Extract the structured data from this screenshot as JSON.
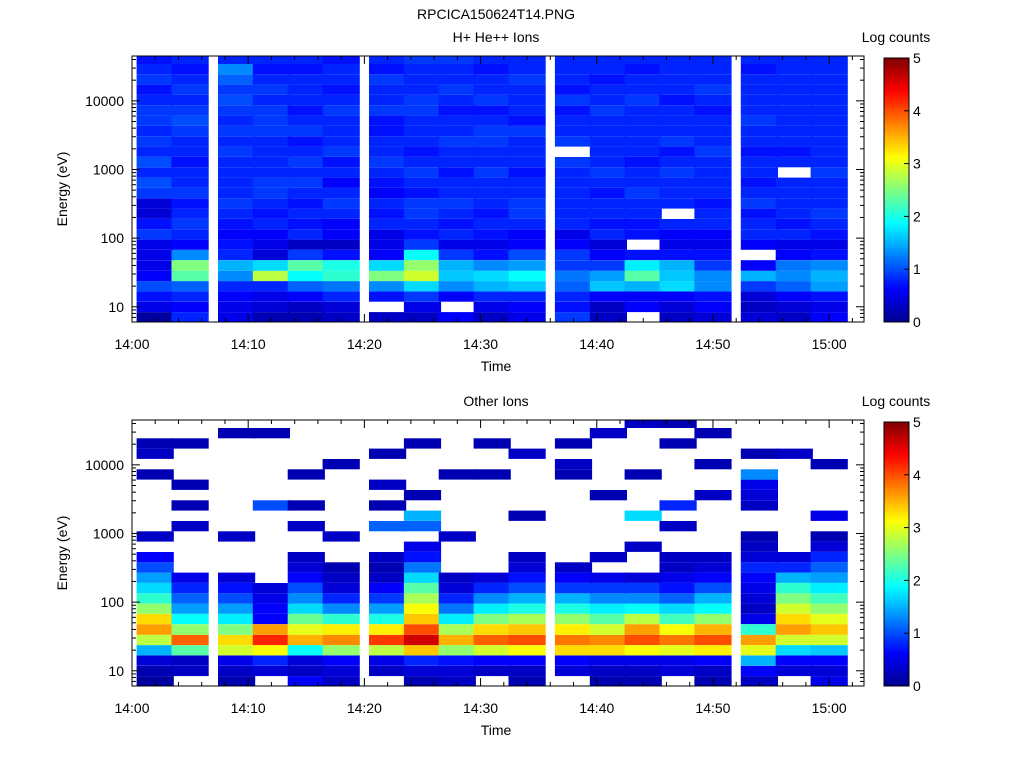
{
  "figure": {
    "title": "RPCICA150624T14.PNG"
  },
  "colors": {
    "colormap": [
      "#00008f",
      "#0000ff",
      "#0080ff",
      "#00ffff",
      "#80ff80",
      "#ffff00",
      "#ff8000",
      "#ff0000",
      "#800000"
    ],
    "background": "#ffffff",
    "empty_bin": "#ffffff"
  },
  "chart_data": [
    {
      "type": "heatmap",
      "title": "H+ He++ Ions",
      "xlabel": "Time",
      "ylabel": "Energy (eV)",
      "y_scale": "log",
      "ylim": [
        6,
        45000
      ],
      "xlim": [
        "14:00",
        "15:03"
      ],
      "x_ticks": [
        "14:00",
        "14:10",
        "14:20",
        "14:30",
        "14:40",
        "14:50",
        "15:00"
      ],
      "y_ticks": [
        "10",
        "100",
        "1000",
        "10000"
      ],
      "colorbar": {
        "label": "Log counts",
        "range": [
          0,
          5
        ],
        "ticks": [
          "0",
          "1",
          "2",
          "3",
          "4",
          "5"
        ]
      },
      "time_bins": [
        "14:02",
        "14:05",
        "14:09",
        "14:12",
        "14:15",
        "14:18",
        "14:22",
        "14:25",
        "14:28",
        "14:31",
        "14:34",
        "14:38",
        "14:41",
        "14:44",
        "14:47",
        "14:50",
        "14:54",
        "14:57",
        "15:00"
      ],
      "energy_bins_eV": [
        7,
        10,
        14,
        20,
        28,
        40,
        57,
        80,
        113,
        160,
        226,
        320,
        452,
        640,
        905,
        1280,
        1810,
        2560,
        3620,
        5120,
        7240,
        10240,
        14480,
        20480,
        28960,
        40960
      ],
      "log_counts": [
        [
          0.1,
          0.5,
          0.7,
          1.0,
          0.6,
          0.5,
          0.5,
          0.5,
          0.9,
          0.7,
          0.4,
          0.4,
          0.9,
          1.0,
          0.8,
          1.0,
          0.8,
          0.9,
          0.8,
          0.9,
          0.9,
          0.8,
          0.7,
          0.9,
          0.8,
          0.7
        ],
        [
          0.8,
          0.6,
          0.8,
          1.1,
          2.3,
          2.5,
          1.3,
          0.6,
          0.8,
          0.9,
          0.8,
          0.7,
          0.9,
          0.8,
          0.8,
          0.7,
          0.8,
          0.8,
          0.9,
          1.0,
          0.9,
          0.8,
          0.9,
          0.8,
          0.7,
          0.8
        ],
        [
          0.5,
          0.5,
          0.6,
          0.8,
          1.3,
          1.5,
          0.8,
          0.7,
          0.6,
          0.7,
          0.8,
          0.9,
          0.8,
          0.8,
          0.8,
          0.8,
          0.9,
          0.8,
          0.9,
          0.8,
          0.9,
          1.0,
          0.9,
          1.1,
          1.3,
          0.8
        ],
        [
          0.2,
          0.4,
          0.5,
          0.8,
          2.8,
          1.7,
          0.4,
          0.5,
          0.6,
          0.8,
          0.7,
          0.8,
          0.9,
          0.9,
          0.8,
          0.8,
          0.8,
          0.8,
          0.9,
          0.9,
          0.9,
          0.8,
          0.9,
          0.8,
          0.7,
          0.8
        ],
        [
          0.2,
          0.3,
          0.6,
          1.1,
          1.9,
          2.3,
          0.9,
          0.3,
          0.8,
          0.7,
          0.8,
          0.7,
          0.8,
          0.9,
          0.8,
          0.9,
          0.8,
          0.7,
          0.9,
          0.8,
          0.7,
          0.8,
          0.8,
          0.8,
          0.7,
          0.8
        ],
        [
          0.3,
          0.4,
          0.8,
          1.2,
          2.1,
          2.0,
          0.7,
          0.3,
          0.6,
          0.6,
          0.8,
          0.9,
          0.8,
          0.6,
          0.8,
          0.7,
          0.9,
          0.8,
          0.8,
          0.8,
          0.9,
          0.8,
          0.7,
          0.8,
          0.8,
          0.7
        ],
        [
          0.3,
          -1,
          0.7,
          1.3,
          2.5,
          1.7,
          0.6,
          0.5,
          0.5,
          0.8,
          0.7,
          0.8,
          0.6,
          0.7,
          0.8,
          0.9,
          0.8,
          0.8,
          0.7,
          0.7,
          0.9,
          0.8,
          0.8,
          0.9,
          0.7,
          0.8
        ],
        [
          0.3,
          0.5,
          0.9,
          1.7,
          2.9,
          2.6,
          1.9,
          0.9,
          0.7,
          0.8,
          0.9,
          0.9,
          0.7,
          0.8,
          0.9,
          0.8,
          0.7,
          0.8,
          0.8,
          0.8,
          0.9,
          0.9,
          0.8,
          0.8,
          0.8,
          0.9
        ],
        [
          0.6,
          -1,
          0.6,
          1.3,
          1.6,
          1.5,
          0.9,
          0.5,
          0.8,
          0.7,
          0.8,
          0.9,
          0.8,
          0.8,
          0.7,
          0.8,
          0.8,
          0.9,
          0.8,
          0.8,
          0.7,
          0.8,
          0.9,
          0.8,
          0.8,
          0.9
        ],
        [
          0.3,
          0.5,
          0.8,
          1.5,
          1.7,
          1.3,
          0.7,
          0.5,
          0.7,
          0.8,
          0.7,
          0.8,
          0.8,
          0.8,
          0.9,
          0.8,
          0.8,
          0.9,
          0.9,
          0.8,
          0.7,
          0.9,
          0.8,
          0.8,
          0.7,
          0.8
        ],
        [
          0.5,
          0.6,
          0.8,
          1.6,
          1.9,
          1.4,
          1.0,
          0.6,
          0.6,
          0.8,
          0.9,
          0.9,
          0.8,
          0.8,
          0.7,
          0.8,
          0.8,
          0.8,
          0.9,
          0.7,
          0.8,
          0.8,
          0.8,
          0.9,
          0.8,
          0.8
        ],
        [
          0.9,
          0.7,
          0.8,
          1.1,
          1.2,
          0.9,
          0.9,
          0.6,
          0.5,
          0.8,
          0.8,
          0.8,
          0.8,
          0.8,
          0.8,
          0.9,
          -1,
          0.9,
          0.8,
          0.8,
          0.7,
          0.9,
          0.7,
          0.8,
          0.8,
          0.8
        ],
        [
          0.3,
          0.3,
          0.6,
          1.6,
          1.4,
          0.9,
          0.6,
          0.4,
          0.8,
          0.7,
          0.8,
          0.8,
          0.7,
          0.8,
          0.9,
          0.8,
          0.8,
          0.8,
          0.8,
          0.8,
          0.9,
          0.8,
          0.8,
          0.7,
          0.8,
          0.8
        ],
        [
          -1,
          0.6,
          0.6,
          1.5,
          2.3,
          1.8,
          0.7,
          -1,
          0.7,
          0.7,
          0.8,
          0.8,
          0.9,
          0.8,
          0.8,
          0.7,
          0.8,
          0.8,
          0.8,
          0.8,
          0.8,
          0.9,
          0.8,
          0.8,
          0.7,
          0.8
        ],
        [
          0.3,
          0.4,
          0.6,
          1.7,
          1.6,
          1.5,
          0.7,
          0.5,
          0.6,
          0.8,
          -1,
          0.8,
          0.8,
          0.8,
          0.9,
          0.8,
          0.7,
          0.9,
          0.8,
          0.8,
          0.8,
          0.7,
          0.8,
          0.8,
          0.8,
          0.8
        ],
        [
          0.4,
          0.6,
          0.7,
          1.3,
          1.3,
          0.9,
          0.7,
          0.5,
          0.6,
          0.8,
          0.8,
          0.7,
          0.8,
          0.8,
          0.8,
          0.8,
          0.9,
          0.8,
          0.8,
          0.8,
          0.7,
          0.8,
          0.9,
          0.8,
          0.8,
          0.8
        ],
        [
          0.4,
          0.3,
          0.4,
          0.9,
          1.5,
          0.6,
          -1,
          0.6,
          0.8,
          0.8,
          0.7,
          0.9,
          0.8,
          0.7,
          0.8,
          0.8,
          0.7,
          0.8,
          0.8,
          0.9,
          0.8,
          0.8,
          0.8,
          0.8,
          0.7,
          0.8
        ],
        [
          0.3,
          0.4,
          0.6,
          1.1,
          1.3,
          1.2,
          0.6,
          0.5,
          0.8,
          0.7,
          0.8,
          0.8,
          0.8,
          0.8,
          -1,
          0.8,
          0.7,
          0.8,
          0.8,
          0.8,
          0.8,
          0.8,
          0.8,
          0.8,
          0.8,
          0.8
        ],
        [
          0.6,
          0.5,
          0.7,
          1.4,
          1.5,
          1.3,
          0.7,
          0.5,
          0.7,
          0.8,
          0.9,
          0.8,
          0.8,
          0.8,
          0.9,
          0.8,
          0.8,
          0.8,
          0.8,
          0.8,
          0.8,
          0.8,
          0.8,
          0.8,
          0.8,
          0.8
        ]
      ]
    },
    {
      "type": "heatmap",
      "title": "Other Ions",
      "xlabel": "Time",
      "ylabel": "Energy (eV)",
      "y_scale": "log",
      "ylim": [
        6,
        45000
      ],
      "xlim": [
        "14:00",
        "15:03"
      ],
      "x_ticks": [
        "14:00",
        "14:10",
        "14:20",
        "14:30",
        "14:40",
        "14:50",
        "15:00"
      ],
      "y_ticks": [
        "10",
        "100",
        "1000",
        "10000"
      ],
      "colorbar": {
        "label": "Log counts",
        "range": [
          0,
          5
        ],
        "ticks": [
          "0",
          "1",
          "2",
          "3",
          "4",
          "5"
        ]
      },
      "time_bins": [
        "14:02",
        "14:05",
        "14:09",
        "14:12",
        "14:15",
        "14:18",
        "14:22",
        "14:25",
        "14:28",
        "14:31",
        "14:34",
        "14:38",
        "14:41",
        "14:44",
        "14:47",
        "14:50",
        "14:54",
        "14:57",
        "15:00"
      ],
      "energy_bins_eV": [
        7,
        10,
        14,
        20,
        28,
        40,
        57,
        80,
        113,
        160,
        226,
        320,
        452,
        640,
        905,
        1280,
        1810,
        2560,
        3620,
        5120,
        7240,
        10240,
        14480,
        20480,
        28960,
        40960
      ],
      "log_counts": [
        [
          0.1,
          0.2,
          0.4,
          1.5,
          2.8,
          3.6,
          3.3,
          2.6,
          2.1,
          1.7,
          1.4,
          1.0,
          0.6,
          -1,
          0.3,
          -1,
          -1,
          -1,
          -1,
          -1,
          0.2,
          -1,
          0.3,
          0.2,
          -1,
          -1
        ],
        [
          -1,
          0.3,
          0.3,
          2.3,
          3.9,
          2.6,
          1.9,
          1.4,
          1.1,
          0.8,
          0.5,
          -1,
          -1,
          -1,
          -1,
          0.3,
          -1,
          0.2,
          -1,
          0.2,
          -1,
          -1,
          -1,
          0.2,
          -1,
          -1
        ],
        [
          0.2,
          0.3,
          0.5,
          2.9,
          3.3,
          2.5,
          1.8,
          1.4,
          1.0,
          0.7,
          0.4,
          -1,
          -1,
          -1,
          0.3,
          -1,
          -1,
          -1,
          -1,
          -1,
          -1,
          -1,
          -1,
          -1,
          0.2,
          -1
        ],
        [
          -1,
          0.4,
          0.8,
          3.1,
          4.2,
          3.6,
          0.6,
          0.6,
          0.5,
          0.4,
          -1,
          -1,
          -1,
          -1,
          -1,
          -1,
          -1,
          1.0,
          -1,
          -1,
          -1,
          -1,
          -1,
          -1,
          0.2,
          -1
        ],
        [
          0.6,
          0.3,
          0.4,
          1.9,
          3.5,
          3.0,
          2.4,
          1.7,
          1.3,
          1.0,
          0.6,
          0.4,
          0.3,
          -1,
          -1,
          0.3,
          -1,
          0.2,
          -1,
          -1,
          0.2,
          -1,
          -1,
          -1,
          -1,
          -1
        ],
        [
          0.3,
          0.4,
          0.6,
          2.6,
          3.7,
          3.2,
          2.1,
          1.3,
          0.8,
          0.4,
          0.3,
          0.2,
          -1,
          -1,
          0.3,
          -1,
          -1,
          -1,
          -1,
          -1,
          -1,
          0.2,
          -1,
          -1,
          -1,
          -1
        ],
        [
          -1,
          0.3,
          0.5,
          2.8,
          4.1,
          3.2,
          2.0,
          1.4,
          0.9,
          0.6,
          0.3,
          0.2,
          0.3,
          -1,
          -1,
          1.1,
          -1,
          0.2,
          -1,
          0.3,
          -1,
          -1,
          0.2,
          -1,
          -1,
          -1
        ],
        [
          0.2,
          0.4,
          0.8,
          3.4,
          4.6,
          4.0,
          3.4,
          3.1,
          2.7,
          2.3,
          1.7,
          1.2,
          0.7,
          0.5,
          -1,
          1.1,
          1.5,
          -1,
          0.2,
          -1,
          -1,
          -1,
          -1,
          0.2,
          -1,
          -1
        ],
        [
          0.3,
          0.4,
          0.7,
          2.6,
          3.5,
          2.7,
          1.8,
          1.2,
          0.8,
          0.4,
          0.3,
          -1,
          -1,
          -1,
          0.3,
          -1,
          -1,
          -1,
          -1,
          -1,
          0.2,
          -1,
          -1,
          -1,
          -1,
          -1
        ],
        [
          -1,
          0.3,
          0.6,
          2.9,
          3.9,
          3.3,
          2.5,
          1.8,
          1.3,
          0.8,
          0.4,
          -1,
          -1,
          -1,
          -1,
          -1,
          -1,
          -1,
          -1,
          -1,
          0.2,
          -1,
          -1,
          0.2,
          -1,
          -1
        ],
        [
          0.2,
          0.3,
          0.6,
          3.1,
          4.0,
          3.4,
          2.7,
          2.0,
          1.5,
          1.0,
          0.7,
          0.4,
          0.3,
          -1,
          -1,
          -1,
          0.2,
          -1,
          -1,
          -1,
          -1,
          -1,
          0.3,
          -1,
          -1,
          -1
        ],
        [
          -1,
          0.4,
          0.6,
          3.3,
          3.8,
          3.2,
          2.6,
          2.0,
          1.5,
          0.9,
          0.6,
          0.3,
          -1,
          -1,
          -1,
          -1,
          -1,
          -1,
          -1,
          -1,
          0.2,
          0.3,
          -1,
          0.2,
          -1,
          -1
        ],
        [
          0.2,
          0.3,
          0.5,
          3.3,
          3.7,
          2.9,
          2.3,
          1.8,
          1.3,
          0.9,
          0.5,
          -1,
          0.3,
          -1,
          -1,
          -1,
          -1,
          -1,
          0.2,
          -1,
          -1,
          -1,
          -1,
          -1,
          0.3,
          -1
        ],
        [
          0.2,
          0.3,
          0.5,
          3.1,
          4.0,
          3.6,
          2.8,
          1.9,
          1.3,
          0.9,
          0.4,
          -1,
          -1,
          0.3,
          -1,
          -1,
          1.7,
          -1,
          -1,
          -1,
          0.2,
          -1,
          -1,
          -1,
          -1,
          0.3
        ],
        [
          -1,
          0.4,
          0.5,
          3.0,
          3.8,
          3.1,
          2.2,
          1.7,
          1.1,
          0.7,
          0.5,
          0.3,
          0.3,
          -1,
          -1,
          0.3,
          -1,
          0.8,
          -1,
          -1,
          -1,
          -1,
          -1,
          0.2,
          -1,
          0.2
        ],
        [
          0.2,
          0.3,
          0.6,
          3.2,
          4.0,
          3.5,
          2.6,
          1.9,
          1.5,
          1.0,
          0.6,
          0.4,
          0.3,
          -1,
          -1,
          -1,
          -1,
          -1,
          0.3,
          -1,
          -1,
          0.2,
          -1,
          -1,
          0.2,
          -1
        ],
        [
          0.3,
          0.6,
          1.5,
          3.0,
          3.6,
          2.1,
          0.5,
          0.3,
          0.4,
          0.5,
          0.6,
          0.8,
          0.4,
          0.3,
          0.2,
          -1,
          -1,
          0.3,
          0.4,
          0.5,
          1.3,
          -1,
          0.2,
          -1,
          -1,
          -1
        ],
        [
          -1,
          0.4,
          0.6,
          1.7,
          2.9,
          3.6,
          3.3,
          2.9,
          2.5,
          2.1,
          1.5,
          0.8,
          0.4,
          -1,
          -1,
          -1,
          -1,
          -1,
          -1,
          -1,
          -1,
          -1,
          0.3,
          -1,
          -1,
          -1
        ],
        [
          0.5,
          0.4,
          0.6,
          1.6,
          2.9,
          3.4,
          3.0,
          2.6,
          2.2,
          1.8,
          1.4,
          1.1,
          0.8,
          0.4,
          0.2,
          -1,
          0.5,
          -1,
          -1,
          -1,
          -1,
          0.2,
          -1,
          -1,
          -1,
          -1
        ]
      ]
    }
  ]
}
